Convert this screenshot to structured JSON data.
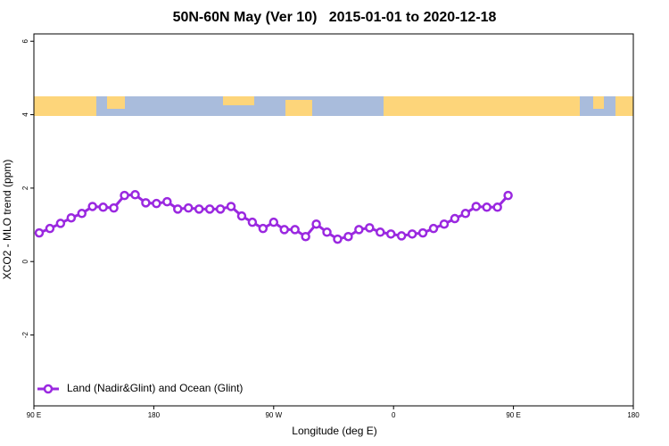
{
  "chart_data": {
    "type": "line",
    "title": "50N-60N May (Ver 10)   2015-01-01 to 2020-12-18",
    "x_label": "Longitude (deg E)",
    "y_label": "XCO2 - MLO trend (ppm)",
    "xlim": [
      90,
      540
    ],
    "xticks": [
      {
        "value": 90,
        "label": "90 E"
      },
      180,
      {
        "value": 270,
        "label": "90 W"
      },
      {
        "value": 360,
        "label": "0"
      },
      {
        "value": 450,
        "label": "90 E"
      },
      {
        "value": 540,
        "label": "180"
      }
    ],
    "ylim": [
      -3.93,
      6.2
    ],
    "yticks": [
      -2,
      0,
      2,
      4,
      6
    ],
    "legend_position": "bottom-left",
    "series": [
      {
        "name": "Land (Nadir&Glint) and Ocean (Glint)",
        "color": "#9a28e0",
        "x": [
          94,
          102,
          110,
          118,
          126,
          134,
          142,
          150,
          158,
          166,
          174,
          182,
          190,
          198,
          206,
          214,
          222,
          230,
          238,
          246,
          254,
          262,
          270,
          278,
          286,
          294,
          302,
          310,
          318,
          326,
          334,
          342,
          350,
          358,
          366,
          374,
          382,
          390,
          398,
          406,
          414,
          422,
          430,
          438,
          446
        ],
        "values": [
          0.78,
          0.9,
          1.04,
          1.19,
          1.31,
          1.5,
          1.48,
          1.46,
          1.8,
          1.82,
          1.6,
          1.58,
          1.63,
          1.43,
          1.46,
          1.43,
          1.43,
          1.43,
          1.5,
          1.24,
          1.07,
          0.9,
          1.07,
          0.87,
          0.87,
          0.68,
          1.02,
          0.8,
          0.61,
          0.68,
          0.87,
          0.92,
          0.8,
          0.75,
          0.7,
          0.75,
          0.78,
          0.9,
          1.02,
          1.17,
          1.31,
          1.5,
          1.48,
          1.48,
          1.8
        ]
      }
    ]
  }
}
